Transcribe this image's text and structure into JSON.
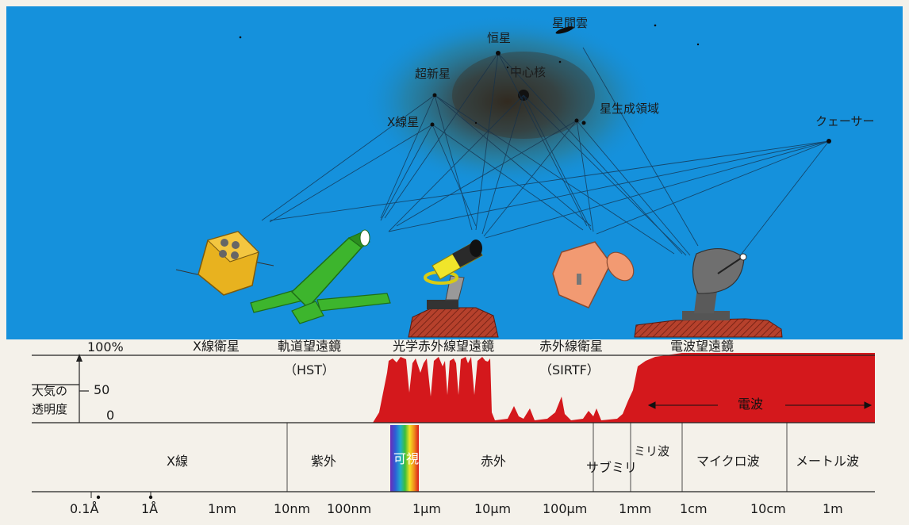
{
  "sky": {
    "objects": [
      {
        "id": "interstellar_cloud",
        "label": "星間雲"
      },
      {
        "id": "star",
        "label": "恒星"
      },
      {
        "id": "supernova",
        "label": "超新星"
      },
      {
        "id": "core",
        "label": "中心核"
      },
      {
        "id": "star_forming_region",
        "label": "星生成領域"
      },
      {
        "id": "xray_star",
        "label": "X線星"
      },
      {
        "id": "quasar",
        "label": "クェーサー"
      }
    ]
  },
  "instruments": [
    {
      "id": "xray_satellite",
      "label": "X線衛星",
      "sub": ""
    },
    {
      "id": "hst",
      "label": "軌道望遠鏡",
      "sub": "（HST）"
    },
    {
      "id": "optical_ir",
      "label": "光学赤外線望遠鏡",
      "sub": ""
    },
    {
      "id": "sirtf",
      "label": "赤外線衛星",
      "sub": "（SIRTF）"
    },
    {
      "id": "radio",
      "label": "電波望遠鏡",
      "sub": ""
    }
  ],
  "transparency": {
    "axis_title_line1": "大気の",
    "axis_title_line2": "透明度",
    "tick_top": "100%",
    "tick_mid": "50",
    "tick_zero": "0",
    "radio_label": "電波",
    "colors": {
      "fill": "#d4181c",
      "background": "#f4f1ea"
    }
  },
  "bands": [
    {
      "id": "xray",
      "label": "X線"
    },
    {
      "id": "uv",
      "label": "紫外"
    },
    {
      "id": "visible",
      "label": "可視"
    },
    {
      "id": "infrared",
      "label": "赤外"
    },
    {
      "id": "submm",
      "label": "サブミリ"
    },
    {
      "id": "mm",
      "label": "ミリ波"
    },
    {
      "id": "microwave",
      "label": "マイクロ波"
    },
    {
      "id": "meter",
      "label": "メートル波"
    }
  ],
  "scale": [
    {
      "id": "t1",
      "label": "0.1Å"
    },
    {
      "id": "t2",
      "label": "1Å"
    },
    {
      "id": "t3",
      "label": "1nm"
    },
    {
      "id": "t4",
      "label": "10nm"
    },
    {
      "id": "t5",
      "label": "100nm"
    },
    {
      "id": "t6",
      "label": "1μm"
    },
    {
      "id": "t7",
      "label": "10μm"
    },
    {
      "id": "t8",
      "label": "100μm"
    },
    {
      "id": "t9",
      "label": "1mm"
    },
    {
      "id": "t10",
      "label": "1cm"
    },
    {
      "id": "t11",
      "label": "10cm"
    },
    {
      "id": "t12",
      "label": "1m"
    }
  ],
  "colors": {
    "sky": "#1591dc",
    "nebula": "#3f3b2e",
    "xray_satellite": "#e8b21f",
    "hst": "#3db52d",
    "optical_telescope": "#f0e52a",
    "sirtf": "#f29a72",
    "radio_dish": "#6f6f6f",
    "ground": "#b6412c",
    "atmosphere_fill": "#d4181c"
  }
}
